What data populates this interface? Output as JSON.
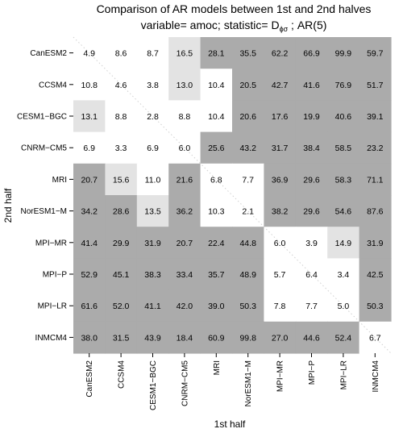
{
  "chart_data": {
    "type": "heatmap",
    "title": "Comparison of AR models between 1st and 2nd halves",
    "subtitle": {
      "prefix": "variable= amoc; statistic= D",
      "subscript": "ϕσ",
      "suffix": " ; AR(5)"
    },
    "xlabel": "1st half",
    "ylabel": "2nd half",
    "x_categories": [
      "CanESM2",
      "CCSM4",
      "CESM1−BGC",
      "CNRM−CM5",
      "MRI",
      "NorESM1−M",
      "MPI−MR",
      "MPI−P",
      "MPI−LR",
      "INMCM4"
    ],
    "y_categories": [
      "CanESM2",
      "CCSM4",
      "CESM1−BGC",
      "CNRM−CM5",
      "MRI",
      "NorESM1−M",
      "MPI−MR",
      "MPI−P",
      "MPI−LR",
      "INMCM4"
    ],
    "values": [
      [
        4.9,
        8.6,
        8.7,
        16.5,
        28.1,
        35.5,
        62.2,
        66.9,
        99.9,
        59.7
      ],
      [
        10.8,
        4.6,
        3.8,
        13.0,
        10.4,
        20.5,
        42.7,
        41.6,
        76.9,
        51.7
      ],
      [
        13.1,
        8.8,
        2.8,
        8.8,
        10.4,
        20.6,
        17.6,
        19.9,
        40.6,
        39.1
      ],
      [
        6.9,
        3.3,
        6.9,
        6.0,
        25.6,
        43.2,
        31.7,
        38.4,
        58.5,
        23.2
      ],
      [
        20.7,
        15.6,
        11.0,
        21.6,
        6.8,
        7.7,
        36.9,
        29.6,
        58.3,
        71.1
      ],
      [
        34.2,
        28.6,
        13.5,
        36.2,
        10.3,
        2.1,
        38.2,
        29.6,
        54.6,
        87.6
      ],
      [
        41.4,
        29.9,
        31.9,
        20.7,
        22.4,
        44.8,
        6.0,
        3.9,
        14.9,
        31.9
      ],
      [
        52.9,
        45.1,
        38.3,
        33.4,
        35.7,
        48.9,
        5.7,
        6.4,
        3.4,
        42.5
      ],
      [
        61.6,
        52.0,
        41.1,
        42.0,
        39.0,
        50.3,
        7.8,
        7.7,
        5.0,
        50.3
      ],
      [
        38.0,
        31.5,
        43.9,
        18.4,
        60.9,
        99.8,
        27.0,
        44.6,
        52.4,
        6.7
      ]
    ],
    "color_levels": [
      [
        0,
        0,
        0,
        1,
        2,
        2,
        2,
        2,
        2,
        2
      ],
      [
        0,
        0,
        0,
        1,
        0,
        2,
        2,
        2,
        2,
        2
      ],
      [
        1,
        0,
        0,
        0,
        0,
        2,
        2,
        2,
        2,
        2
      ],
      [
        0,
        0,
        0,
        0,
        2,
        2,
        2,
        2,
        2,
        2
      ],
      [
        2,
        1,
        0,
        2,
        0,
        0,
        2,
        2,
        2,
        2
      ],
      [
        2,
        2,
        1,
        2,
        0,
        0,
        2,
        2,
        2,
        2
      ],
      [
        2,
        2,
        2,
        2,
        2,
        2,
        0,
        0,
        1,
        2
      ],
      [
        2,
        2,
        2,
        2,
        2,
        2,
        0,
        0,
        0,
        2
      ],
      [
        2,
        2,
        2,
        2,
        2,
        2,
        0,
        0,
        0,
        2
      ],
      [
        2,
        2,
        2,
        2,
        2,
        2,
        2,
        2,
        2,
        0
      ]
    ],
    "colors": {
      "white": "#ffffff",
      "light": "#e3e3e3",
      "dark": "#ababab",
      "diagonal": "#d0d0d0"
    },
    "grid": false,
    "legend": "none"
  }
}
